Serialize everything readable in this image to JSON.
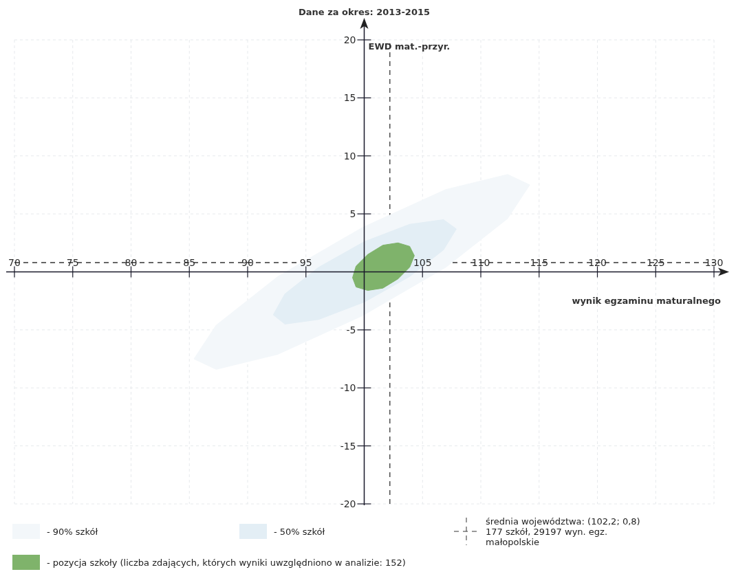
{
  "chart_data": {
    "type": "area",
    "title": "Dane za okres: 2013-2015",
    "xlabel": "wynik egzaminu maturalnego",
    "ylabel": "EWD mat.-przyr.",
    "xlim": [
      70,
      130
    ],
    "xticks": [
      70,
      75,
      80,
      85,
      90,
      95,
      105,
      110,
      115,
      120,
      125,
      130
    ],
    "ylim": [
      -20,
      20
    ],
    "yticks": [
      -20,
      -15,
      -10,
      -5,
      5,
      10,
      15,
      20
    ],
    "grid": true,
    "legend": "bottom",
    "series": [
      {
        "name": "- 90% szkół",
        "color": "#f3f7fa",
        "x": [
          114.2,
          112.3,
          107.0,
          99.8,
          92.6,
          87.3,
          85.4,
          87.3,
          92.6,
          99.8,
          107.0,
          112.3,
          114.2
        ],
        "values": [
          7.5,
          8.4,
          7.1,
          3.8,
          -0.4,
          -4.6,
          -7.5,
          -8.4,
          -7.1,
          -3.8,
          0.4,
          4.6,
          7.5
        ]
      },
      {
        "name": "- 50% szkół",
        "color": "#e3eef5",
        "x": [
          107.9,
          106.8,
          103.9,
          100.0,
          96.1,
          93.2,
          92.2,
          93.2,
          96.1,
          100.0,
          103.9,
          106.8,
          107.9
        ],
        "values": [
          3.7,
          4.5,
          4.1,
          2.6,
          0.4,
          -1.9,
          -3.7,
          -4.5,
          -4.1,
          -2.6,
          -0.4,
          1.9,
          3.7
        ]
      },
      {
        "name": "- pozycja szkoły (liczba zdających, których wyniki uwzględniono w analizie: 152)",
        "color": "#7fb36b",
        "x": [
          104.3,
          103.9,
          102.9,
          101.6,
          100.3,
          99.3,
          99.0,
          99.3,
          100.3,
          101.6,
          102.9,
          103.9,
          104.3
        ],
        "values": [
          1.4,
          2.2,
          2.5,
          2.3,
          1.5,
          0.5,
          -0.5,
          -1.3,
          -1.6,
          -1.4,
          -0.6,
          0.4,
          1.4
        ]
      }
    ],
    "ref_lines": [
      {
        "axis": "x",
        "value": 102.2,
        "label": "średnia województwa: (102,2; 0,8)\n177 szkół, 29197 wyn. egz.\nmałopolskie",
        "line_style": "dashed",
        "color": "#333333"
      },
      {
        "axis": "y",
        "value": 0.8,
        "line_style": "dashed",
        "color": "#333333"
      }
    ]
  }
}
